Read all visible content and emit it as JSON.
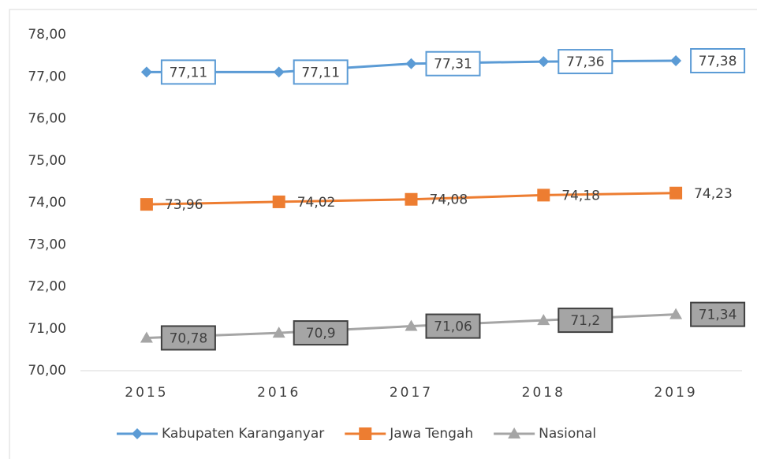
{
  "chart_data": {
    "type": "line",
    "categories": [
      "2015",
      "2016",
      "2017",
      "2018",
      "2019"
    ],
    "series": [
      {
        "name": "Kabupaten Karanganyar",
        "color": "#5b9bd5",
        "marker": "diamond",
        "values": [
          77.11,
          77.11,
          77.31,
          77.36,
          77.38
        ],
        "value_labels": [
          "77,11",
          "77,11",
          "77,31",
          "77,36",
          "77,38"
        ]
      },
      {
        "name": "Jawa Tengah",
        "color": "#ed7d31",
        "marker": "square",
        "values": [
          73.96,
          74.02,
          74.08,
          74.18,
          74.23
        ],
        "value_labels": [
          "73,96",
          "74,02",
          "74,08",
          "74,18",
          "74,23"
        ]
      },
      {
        "name": "Nasional",
        "color": "#a5a5a5",
        "marker": "triangle",
        "values": [
          70.78,
          70.9,
          71.06,
          71.2,
          71.34
        ],
        "value_labels": [
          "70,78",
          "70,9",
          "71,06",
          "71,2",
          "71,34"
        ]
      }
    ],
    "ylim": [
      70,
      78
    ],
    "yticks": [
      {
        "value": 70,
        "label": "70,00"
      },
      {
        "value": 71,
        "label": "71,00"
      },
      {
        "value": 72,
        "label": "72,00"
      },
      {
        "value": 73,
        "label": "73,00"
      },
      {
        "value": 74,
        "label": "74,00"
      },
      {
        "value": 75,
        "label": "75,00"
      },
      {
        "value": 76,
        "label": "76,00"
      },
      {
        "value": 77,
        "label": "77,00"
      },
      {
        "value": 78,
        "label": "78,00"
      }
    ],
    "grid": false,
    "legend": "bottom"
  }
}
